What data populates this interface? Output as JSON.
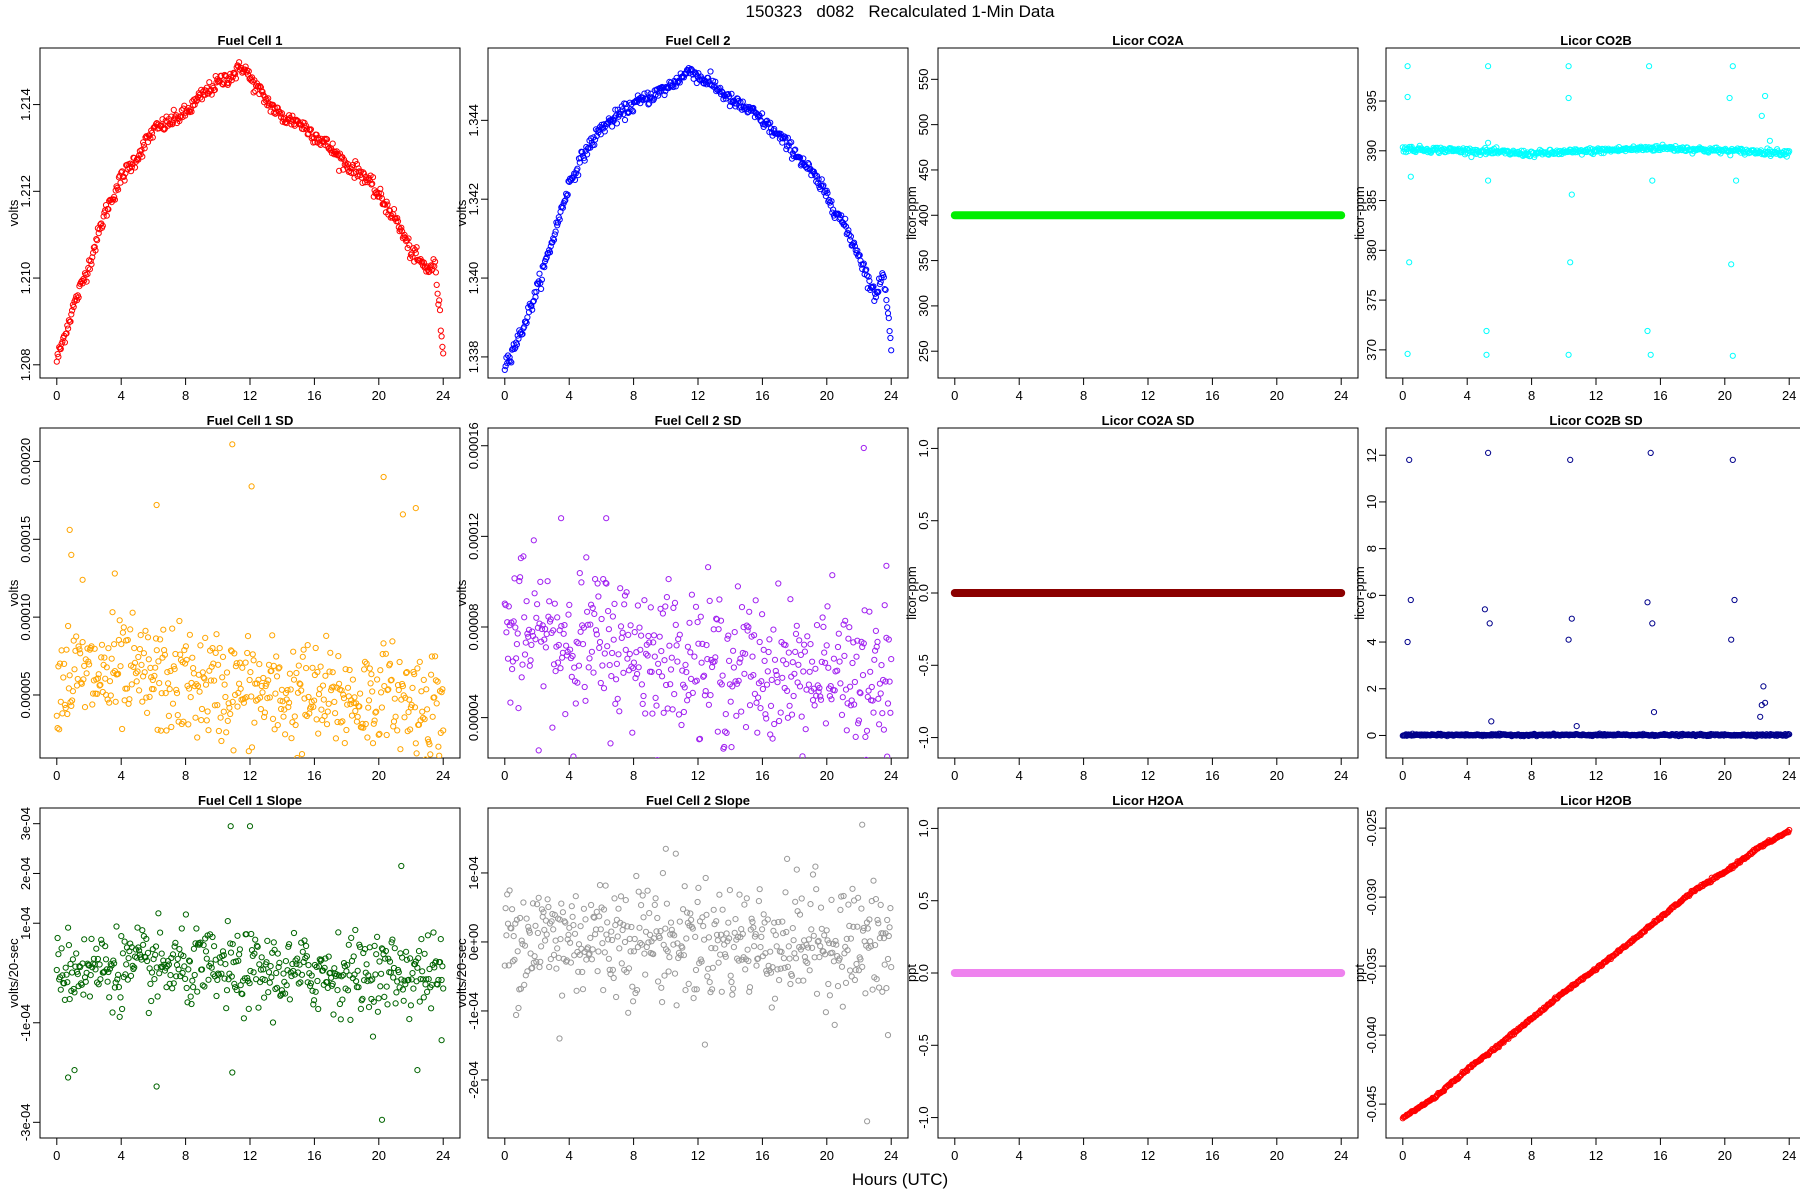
{
  "title": "150323   d082   Recalculated 1-Min Data",
  "xlabel": "Hours (UTC)",
  "chart_data": [
    {
      "type": "scatter",
      "title": "Fuel Cell 1",
      "ylabel": "volts",
      "color": "#ff0000",
      "xlim": [
        0,
        24
      ],
      "ylim": [
        1.208,
        1.215
      ],
      "xticks": [
        "0",
        "4",
        "8",
        "12",
        "16",
        "20",
        "24"
      ],
      "yticks": [
        "1.208",
        "1.210",
        "1.212",
        "1.214"
      ],
      "pattern": "arc",
      "points": [
        [
          0,
          1.2081
        ],
        [
          1,
          1.2093
        ],
        [
          2,
          1.2103
        ],
        [
          3,
          1.2115
        ],
        [
          4,
          1.2123
        ],
        [
          5,
          1.2128
        ],
        [
          6,
          1.2134
        ],
        [
          7,
          1.2136
        ],
        [
          8,
          1.2138
        ],
        [
          9,
          1.2142
        ],
        [
          10,
          1.2145
        ],
        [
          11,
          1.2147
        ],
        [
          11.6,
          1.2149
        ],
        [
          12,
          1.2146
        ],
        [
          13,
          1.2141
        ],
        [
          14,
          1.2137
        ],
        [
          15,
          1.2136
        ],
        [
          16,
          1.2133
        ],
        [
          17,
          1.213
        ],
        [
          18,
          1.2126
        ],
        [
          19,
          1.2124
        ],
        [
          20,
          1.2119
        ],
        [
          21,
          1.2114
        ],
        [
          22,
          1.2106
        ],
        [
          23,
          1.2102
        ],
        [
          23.5,
          1.2103
        ],
        [
          24,
          1.2083
        ]
      ],
      "spread": 0.00015
    },
    {
      "type": "scatter",
      "title": "Fuel Cell 2",
      "ylabel": "volts",
      "color": "#0000ff",
      "xlim": [
        0,
        24
      ],
      "ylim": [
        1.3378,
        1.3455
      ],
      "xticks": [
        "0",
        "4",
        "8",
        "12",
        "16",
        "20",
        "24"
      ],
      "yticks": [
        "1.338",
        "1.340",
        "1.342",
        "1.344"
      ],
      "pattern": "arc",
      "points": [
        [
          0,
          1.3378
        ],
        [
          1,
          1.3386
        ],
        [
          2,
          1.3397
        ],
        [
          3,
          1.341
        ],
        [
          4,
          1.3424
        ],
        [
          5,
          1.3432
        ],
        [
          6,
          1.3438
        ],
        [
          7,
          1.3441
        ],
        [
          8,
          1.3444
        ],
        [
          9,
          1.3446
        ],
        [
          10,
          1.3448
        ],
        [
          11,
          1.3451
        ],
        [
          11.6,
          1.3453
        ],
        [
          12,
          1.3451
        ],
        [
          13,
          1.3449
        ],
        [
          14,
          1.3445
        ],
        [
          15,
          1.3443
        ],
        [
          16,
          1.344
        ],
        [
          17,
          1.3436
        ],
        [
          18,
          1.3432
        ],
        [
          19,
          1.3427
        ],
        [
          20,
          1.3421
        ],
        [
          21,
          1.3414
        ],
        [
          22,
          1.3406
        ],
        [
          23,
          1.3395
        ],
        [
          23.5,
          1.3402
        ],
        [
          24,
          1.3383
        ]
      ],
      "spread": 0.00015
    },
    {
      "type": "scatter",
      "title": "Licor CO2A",
      "ylabel": "licor-ppm",
      "color": "#00ee00",
      "xlim": [
        0,
        24
      ],
      "ylim": [
        235,
        570
      ],
      "xticks": [
        "0",
        "4",
        "8",
        "12",
        "16",
        "20",
        "24"
      ],
      "yticks": [
        "250",
        "300",
        "350",
        "400",
        "450",
        "500",
        "550"
      ],
      "pattern": "flat",
      "points": [
        [
          0,
          400
        ],
        [
          24,
          400
        ]
      ],
      "spread": 0
    },
    {
      "type": "scatter",
      "title": "Licor CO2B",
      "ylabel": "licor-ppm",
      "color": "#00ffff",
      "xlim": [
        0,
        24
      ],
      "ylim": [
        368.5,
        399
      ],
      "xticks": [
        "0",
        "4",
        "8",
        "12",
        "16",
        "20",
        "24"
      ],
      "yticks": [
        "370",
        "375",
        "380",
        "385",
        "390",
        "395"
      ],
      "pattern": "co2b",
      "points": [
        [
          0,
          390.2
        ],
        [
          4,
          390.0
        ],
        [
          8,
          389.7
        ],
        [
          12,
          390.0
        ],
        [
          16,
          390.3
        ],
        [
          20,
          390.0
        ],
        [
          24,
          389.8
        ]
      ],
      "spread": 0.15,
      "outliers": [
        [
          0.3,
          398.5
        ],
        [
          0.3,
          395.4
        ],
        [
          0.5,
          387.4
        ],
        [
          0.4,
          378.8
        ],
        [
          0.3,
          369.6
        ],
        [
          5.3,
          398.5
        ],
        [
          5.3,
          387.0
        ],
        [
          5.3,
          390.8
        ],
        [
          5.2,
          371.9
        ],
        [
          5.2,
          369.5
        ],
        [
          10.3,
          398.5
        ],
        [
          10.3,
          395.3
        ],
        [
          10.5,
          385.6
        ],
        [
          10.4,
          378.8
        ],
        [
          10.3,
          369.5
        ],
        [
          15.3,
          398.5
        ],
        [
          15.5,
          387.0
        ],
        [
          15.2,
          371.9
        ],
        [
          15.4,
          369.5
        ],
        [
          20.5,
          398.5
        ],
        [
          20.3,
          395.3
        ],
        [
          20.7,
          387.0
        ],
        [
          20.4,
          378.6
        ],
        [
          20.5,
          369.4
        ],
        [
          22.3,
          393.5
        ],
        [
          22.5,
          395.5
        ],
        [
          22.8,
          391.0
        ]
      ]
    },
    {
      "type": "scatter",
      "title": "Fuel Cell 1 SD",
      "ylabel": "volts",
      "color": "#ffa500",
      "xlim": [
        0,
        24
      ],
      "ylim": [
        1.8e-05,
        0.000213
      ],
      "xticks": [
        "0",
        "4",
        "8",
        "12",
        "16",
        "20",
        "24"
      ],
      "yticks": [
        "0.00005",
        "0.00010",
        "0.00015",
        "0.00020"
      ],
      "pattern": "noise",
      "points": [
        [
          0,
          6.2e-05
        ],
        [
          4,
          6.2e-05
        ],
        [
          8,
          5.8e-05
        ],
        [
          12,
          5.2e-05
        ],
        [
          16,
          4.8e-05
        ],
        [
          20,
          4.7e-05
        ],
        [
          24,
          4.5e-05
        ]
      ],
      "spread": 3.2e-05,
      "outliers": [
        [
          10.9,
          0.000211
        ],
        [
          20.3,
          0.00019
        ],
        [
          12.1,
          0.000184
        ],
        [
          6.2,
          0.000172
        ],
        [
          22.3,
          0.00017
        ],
        [
          21.5,
          0.000166
        ],
        [
          0.9,
          0.00014
        ],
        [
          0.8,
          0.000156
        ],
        [
          1.6,
          0.000124
        ],
        [
          3.6,
          0.000128
        ]
      ]
    },
    {
      "type": "scatter",
      "title": "Fuel Cell 2 SD",
      "ylabel": "volts",
      "color": "#a020f0",
      "xlim": [
        0,
        24
      ],
      "ylim": [
        2.8e-05,
        0.000162
      ],
      "xticks": [
        "0",
        "4",
        "8",
        "12",
        "16",
        "20",
        "24"
      ],
      "yticks": [
        "0.00004",
        "0.00008",
        "0.00012",
        "0.00016"
      ],
      "pattern": "noise",
      "points": [
        [
          0,
          7.5e-05
        ],
        [
          4,
          7.5e-05
        ],
        [
          8,
          7e-05
        ],
        [
          12,
          6.4e-05
        ],
        [
          16,
          6e-05
        ],
        [
          20,
          5.8e-05
        ],
        [
          24,
          5.2e-05
        ]
      ],
      "spread": 3e-05,
      "outliers": [
        [
          22.3,
          0.000159
        ],
        [
          3.5,
          0.000128
        ],
        [
          6.3,
          0.000128
        ],
        [
          23.7,
          0.000107
        ]
      ]
    },
    {
      "type": "scatter",
      "title": "Licor CO2A SD",
      "ylabel": "licor-ppm",
      "color": "#8b0000",
      "xlim": [
        0,
        24
      ],
      "ylim": [
        -1.05,
        1.05
      ],
      "xticks": [
        "0",
        "4",
        "8",
        "12",
        "16",
        "20",
        "24"
      ],
      "yticks": [
        "-1.0",
        "-0.5",
        "0.0",
        "0.5",
        "1.0"
      ],
      "pattern": "flat",
      "points": [
        [
          0,
          0
        ],
        [
          24,
          0
        ]
      ],
      "spread": 0
    },
    {
      "type": "scatter",
      "title": "Licor CO2B SD",
      "ylabel": "licor-ppm",
      "color": "#00008b",
      "xlim": [
        0,
        24
      ],
      "ylim": [
        -0.4,
        12.6
      ],
      "xticks": [
        "0",
        "4",
        "8",
        "12",
        "16",
        "20",
        "24"
      ],
      "yticks": [
        "0",
        "2",
        "4",
        "6",
        "8",
        "10",
        "12"
      ],
      "pattern": "co2bsd",
      "points": [
        [
          0,
          0.02
        ],
        [
          24,
          0.02
        ]
      ],
      "spread": 0.02,
      "outliers": [
        [
          0.4,
          11.8
        ],
        [
          0.5,
          5.8
        ],
        [
          0.3,
          4.0
        ],
        [
          5.3,
          12.1
        ],
        [
          5.1,
          5.4
        ],
        [
          5.4,
          4.8
        ],
        [
          5.5,
          0.6
        ],
        [
          10.4,
          11.8
        ],
        [
          10.5,
          5.0
        ],
        [
          10.3,
          4.1
        ],
        [
          10.8,
          0.4
        ],
        [
          15.4,
          12.1
        ],
        [
          15.2,
          5.7
        ],
        [
          15.5,
          4.8
        ],
        [
          15.6,
          1.0
        ],
        [
          20.5,
          11.8
        ],
        [
          20.6,
          5.8
        ],
        [
          20.4,
          4.1
        ],
        [
          22.4,
          2.1
        ],
        [
          22.3,
          1.3
        ],
        [
          22.5,
          1.4
        ],
        [
          22.2,
          0.8
        ]
      ]
    },
    {
      "type": "scatter",
      "title": "Fuel Cell 1 Slope",
      "ylabel": "volts/20-sec",
      "color": "#006400",
      "xlim": [
        0,
        24
      ],
      "ylim": [
        -0.000305,
        0.000305
      ],
      "xticks": [
        "0",
        "4",
        "8",
        "12",
        "16",
        "20",
        "24"
      ],
      "yticks": [
        "-3e-04",
        "-1e-04",
        "1e-04",
        "2e-04",
        "3e-04"
      ],
      "pattern": "noise",
      "points": [
        [
          0,
          1e-05
        ],
        [
          4,
          1e-05
        ],
        [
          8,
          1e-05
        ],
        [
          12,
          0.0
        ],
        [
          16,
          0.0
        ],
        [
          20,
          0.0
        ],
        [
          24,
          0.0
        ]
      ],
      "spread": 7e-05,
      "outliers": [
        [
          10.8,
          0.000295
        ],
        [
          12.0,
          0.000295
        ],
        [
          21.4,
          0.000215
        ],
        [
          6.2,
          -0.000228
        ],
        [
          20.2,
          -0.000295
        ],
        [
          22.4,
          -0.000195
        ],
        [
          1.1,
          -0.000195
        ],
        [
          0.7,
          -0.00021
        ],
        [
          10.9,
          -0.0002
        ],
        [
          23.9,
          -0.000135
        ]
      ]
    },
    {
      "type": "scatter",
      "title": "Fuel Cell 2 Slope",
      "ylabel": "volts/20-sec",
      "color": "#999999",
      "xlim": [
        0,
        24
      ],
      "ylim": [
        -0.000265,
        0.000175
      ],
      "xticks": [
        "0",
        "4",
        "8",
        "12",
        "16",
        "20",
        "24"
      ],
      "yticks": [
        "-2e-04",
        "-1e-04",
        "0e+00",
        "1e-04"
      ],
      "pattern": "noise",
      "points": [
        [
          0,
          1e-05
        ],
        [
          4,
          5e-06
        ],
        [
          8,
          1e-05
        ],
        [
          12,
          0.0
        ],
        [
          16,
          0.0
        ],
        [
          20,
          0.0
        ],
        [
          24,
          -1e-05
        ]
      ],
      "spread": 8e-05,
      "outliers": [
        [
          22.2,
          0.00017
        ],
        [
          22.5,
          -0.00026
        ],
        [
          3.4,
          -0.00014
        ],
        [
          23.8,
          -0.000135
        ],
        [
          10.0,
          0.000135
        ]
      ]
    },
    {
      "type": "scatter",
      "title": "Licor H2OA",
      "ylabel": "ppt",
      "color": "#ee82ee",
      "xlim": [
        0,
        24
      ],
      "ylim": [
        -1.05,
        1.05
      ],
      "xticks": [
        "0",
        "4",
        "8",
        "12",
        "16",
        "20",
        "24"
      ],
      "yticks": [
        "-1.0",
        "-0.5",
        "0.0",
        "0.5",
        "1.0"
      ],
      "pattern": "flat",
      "points": [
        [
          0,
          0
        ],
        [
          24,
          0
        ]
      ],
      "spread": 0
    },
    {
      "type": "scatter",
      "title": "Licor H2OB",
      "ylabel": "ppt",
      "color": "#ff0000",
      "xlim": [
        0,
        24
      ],
      "ylim": [
        -0.0465,
        -0.0245
      ],
      "xticks": [
        "0",
        "4",
        "8",
        "12",
        "16",
        "20",
        "24"
      ],
      "yticks": [
        "-0.045",
        "-0.040",
        "-0.035",
        "-0.030",
        "-0.025"
      ],
      "pattern": "arc",
      "points": [
        [
          0,
          -0.046
        ],
        [
          2,
          -0.0445
        ],
        [
          4,
          -0.0425
        ],
        [
          6,
          -0.0407
        ],
        [
          8,
          -0.0388
        ],
        [
          10,
          -0.0369
        ],
        [
          12,
          -0.0352
        ],
        [
          14,
          -0.0334
        ],
        [
          16,
          -0.0315
        ],
        [
          18,
          -0.0296
        ],
        [
          20,
          -0.0282
        ],
        [
          22,
          -0.0265
        ],
        [
          24,
          -0.0252
        ]
      ],
      "spread": 8e-05
    }
  ]
}
